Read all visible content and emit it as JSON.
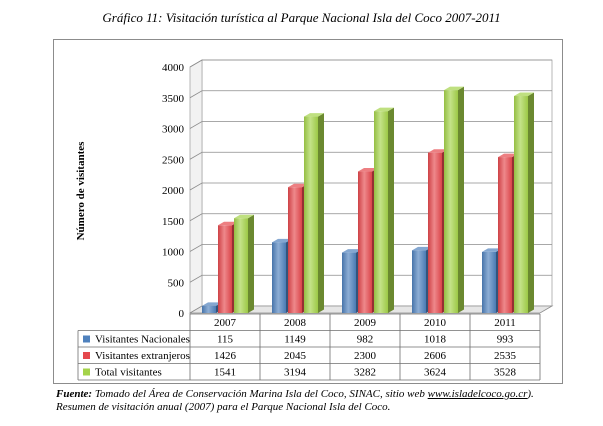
{
  "title": "Gráfico 11: Visitación turística al Parque Nacional Isla del Coco 2007-2011",
  "chart_data": {
    "type": "bar",
    "variant": "3d-clustered-with-data-table",
    "categories": [
      "2007",
      "2008",
      "2009",
      "2010",
      "2011"
    ],
    "ylabel": "Número de visitantes",
    "ylim": [
      0,
      4000
    ],
    "yticks": [
      0,
      500,
      1000,
      1500,
      2000,
      2500,
      3000,
      3500,
      4000
    ],
    "grid": true,
    "legend_placement": "data-table-left",
    "series": [
      {
        "name": "Visitantes Nacionales",
        "color": "#4f81bd",
        "values": [
          115,
          1149,
          982,
          1018,
          993
        ]
      },
      {
        "name": "Visitantes extranjeros",
        "color": "#e5484d",
        "values": [
          1426,
          2045,
          2300,
          2606,
          2535
        ]
      },
      {
        "name": "Total visitantes",
        "color": "#a4d34a",
        "values": [
          1541,
          3194,
          3282,
          3624,
          3528
        ]
      }
    ]
  },
  "source": {
    "label": "Fuente:",
    "text_before_link": " Tomado del Área de Conservación Marina Isla del Coco, SINAC, sitio web ",
    "link": "www.isladelcoco.go.cr",
    "text_after_link": ").",
    "line2": "Resumen de visitación anual (2007) para el  Parque Nacional Isla del Coco."
  }
}
